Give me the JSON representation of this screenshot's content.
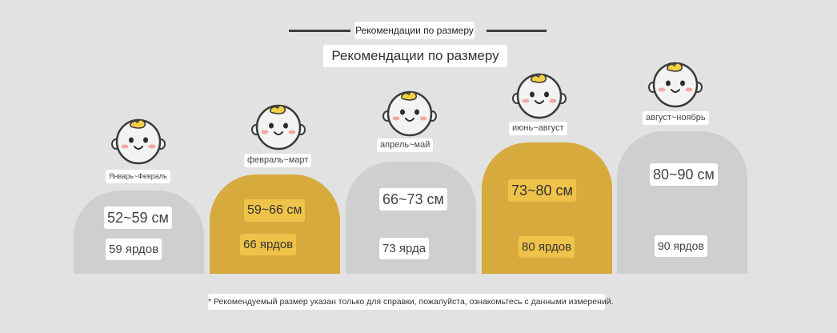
{
  "header": {
    "title_small": "Рекомендации по размеру",
    "title_large": "Рекомендации по размеру"
  },
  "colors": {
    "background": "#e2e2e2",
    "grey_pill": "#cfcfcf",
    "gold_pill": "#d6aa3c",
    "gold_label": "#efc34a"
  },
  "sizes": [
    {
      "months": "Январь~Февраль",
      "height": "52~59 см",
      "yards": "59 ярдов",
      "highlight": false,
      "icon": "baby-face-icon"
    },
    {
      "months": "февраль~март",
      "height": "59~66 см",
      "yards": "66 ярдов",
      "highlight": true,
      "icon": "baby-face-icon"
    },
    {
      "months": "апрель~май",
      "height": "66~73 см",
      "yards": "73 ярда",
      "highlight": false,
      "icon": "baby-face-icon"
    },
    {
      "months": "июнь~август",
      "height": "73~80 см",
      "yards": "80 ярдов",
      "highlight": true,
      "icon": "baby-face-icon"
    },
    {
      "months": "август~ноябрь",
      "height": "80~90 см",
      "yards": "90 ярдов",
      "highlight": false,
      "icon": "baby-face-icon"
    }
  ],
  "footnote": "* Рекомендуемый размер указан только для справки, пожалуйста, ознакомьтесь с данными измерений."
}
